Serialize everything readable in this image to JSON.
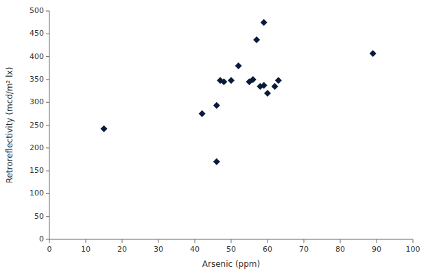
{
  "chart_data": {
    "type": "scatter",
    "x": [
      15,
      42,
      46,
      46,
      47,
      48,
      50,
      52,
      55,
      56,
      57,
      58,
      59,
      59,
      60,
      62,
      63,
      89
    ],
    "y": [
      242,
      275,
      293,
      170,
      348,
      345,
      348,
      380,
      345,
      350,
      437,
      335,
      337,
      475,
      320,
      335,
      348,
      407
    ],
    "xlabel": "Arsenic (ppm)",
    "ylabel": "Retroreflectivity (mcd/m² lx)",
    "xlim": [
      0,
      100
    ],
    "ylim": [
      0,
      500
    ],
    "xticks": [
      0,
      10,
      20,
      30,
      40,
      50,
      60,
      70,
      80,
      90,
      100
    ],
    "yticks": [
      0,
      50,
      100,
      150,
      200,
      250,
      300,
      350,
      400,
      450,
      500
    ],
    "color": "#0a1a3a",
    "marker": "diamond",
    "grid": false
  }
}
